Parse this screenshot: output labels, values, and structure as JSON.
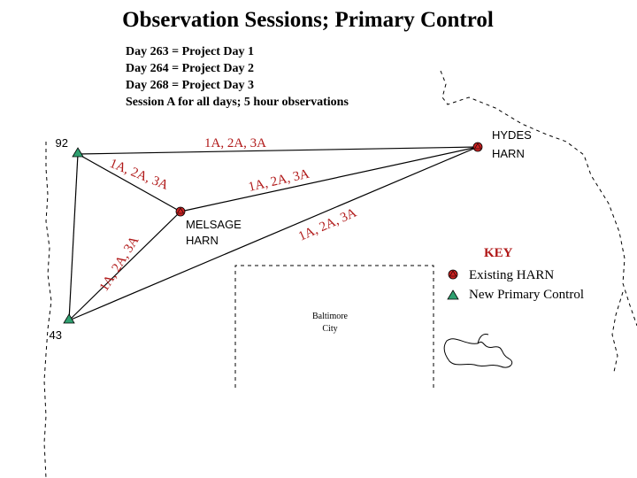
{
  "title": "Observation Sessions; Primary Control",
  "notes": [
    "Day 263 = Project Day 1",
    "Day 264 = Project Day 2",
    "Day 268 = Project Day 3",
    "Session A for all days; 5 hour observations"
  ],
  "stations": {
    "s92": {
      "name": "92",
      "type": "primary"
    },
    "s43": {
      "name": "43",
      "type": "primary"
    },
    "hydes": {
      "name_line1": "HYDES",
      "name_line2": "HARN",
      "type": "harn"
    },
    "melsage": {
      "name_line1": "MELSAGE",
      "name_line2": "HARN",
      "type": "harn"
    }
  },
  "line_labels": {
    "s92_hydes": "1A, 2A, 3A",
    "s92_melsage": "1A, 2A, 3A",
    "s92_s43": "1A, 2A, 3A",
    "s43_melsage": "1A, 2A, 3A",
    "s43_hydes": "1A, 2A, 3A",
    "melsage_hydes": "1A, 2A, 3A"
  },
  "city": {
    "line1": "Baltimore",
    "line2": "City"
  },
  "key": {
    "title": "KEY",
    "harn_label": "Existing HARN",
    "primary_label": "New Primary Control"
  },
  "colors": {
    "harn_fill": "#cc2222",
    "primary_fill": "#2fa070",
    "label_color": "#b01818"
  }
}
